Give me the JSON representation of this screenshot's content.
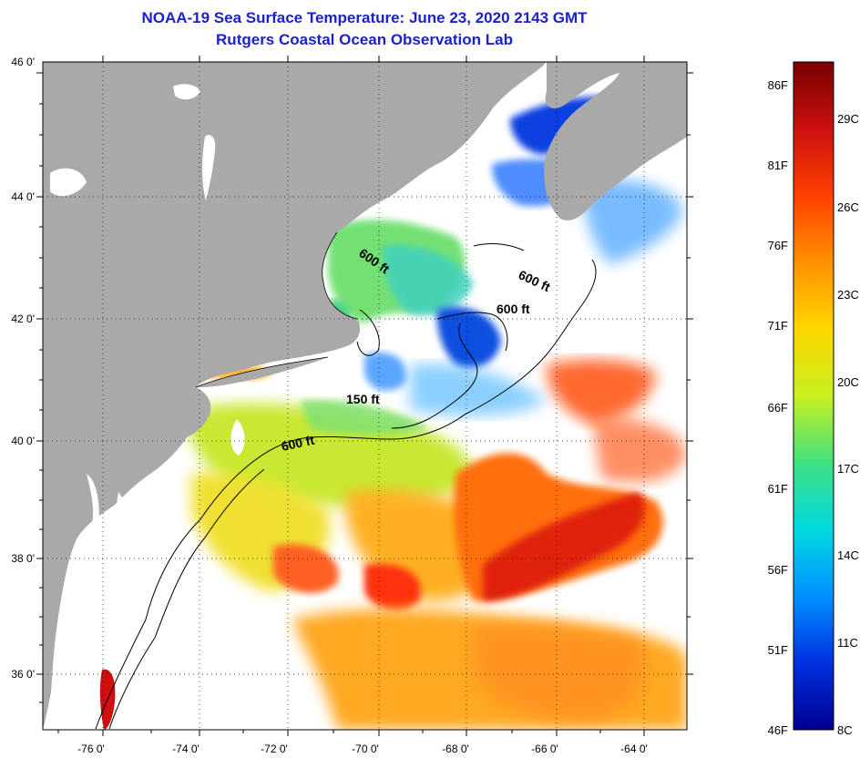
{
  "title": {
    "line1": "NOAA-19 Sea Surface Temperature:  June 23, 2020 2143 GMT",
    "line2": "Rutgers Coastal Ocean Observation Lab"
  },
  "axes": {
    "lat_labels": [
      "46 0'",
      "44 0'",
      "42 0'",
      "40 0'",
      "38 0'",
      "36 0'"
    ],
    "lon_labels": [
      "-76 0'",
      "-74 0'",
      "-72 0'",
      "-70 0'",
      "-68 0'",
      "-66 0'",
      "-64 0'"
    ]
  },
  "contours": [
    {
      "label": "600 ft"
    },
    {
      "label": "600 ft"
    },
    {
      "label": "600 ft"
    },
    {
      "label": "150 ft"
    },
    {
      "label": "600 ft"
    }
  ],
  "colorbar": {
    "fahrenheit": [
      "86F",
      "81F",
      "76F",
      "71F",
      "66F",
      "61F",
      "56F",
      "51F",
      "46F"
    ],
    "celsius": [
      "29C",
      "26C",
      "23C",
      "20C",
      "17C",
      "14C",
      "11C",
      "8C"
    ],
    "colors": [
      "#7a0000",
      "#cc1010",
      "#ff4000",
      "#ff9000",
      "#ffd800",
      "#c8f020",
      "#40e080",
      "#00d8e0",
      "#0090ff",
      "#0030e0",
      "#000090"
    ]
  },
  "colors": {
    "land": "#a9a9a9",
    "ocean_cloud": "#ffffff",
    "title": "#1a22c8"
  }
}
